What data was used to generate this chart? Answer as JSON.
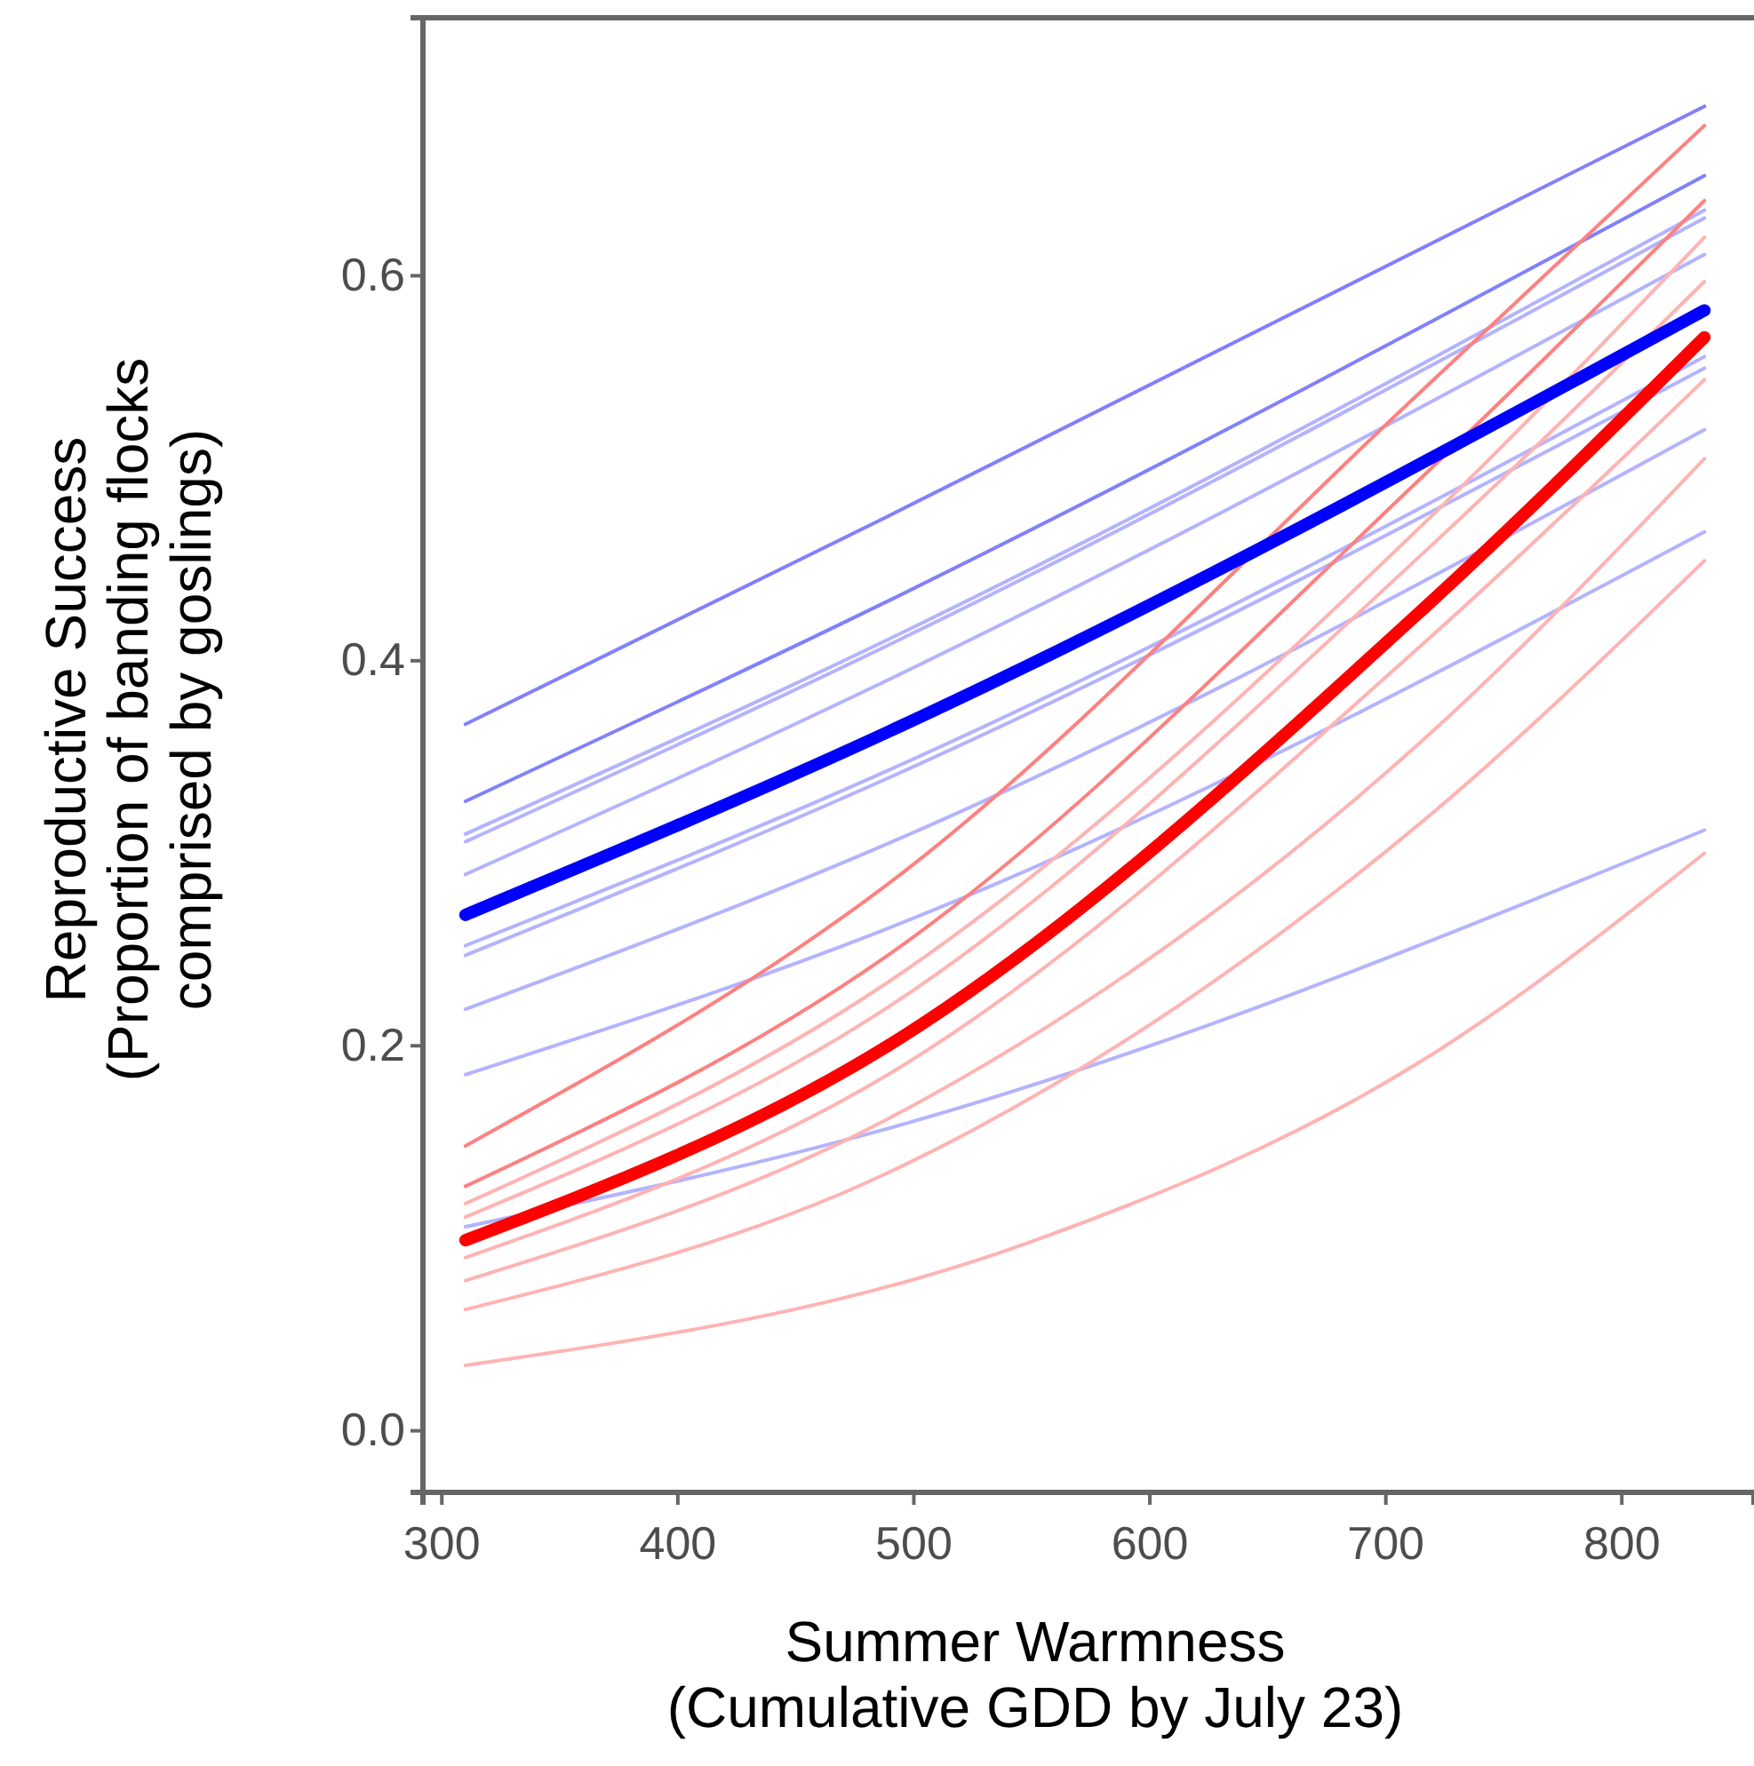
{
  "chart_data": {
    "type": "line",
    "xlabel": "Summer Warmness\n(Cumulative GDD by July 23)",
    "ylabel": "Reproductive Success\n(Proportion of banding flocks\ncomprised by goslings)",
    "xlim": [
      292,
      856
    ],
    "ylim": [
      -0.032,
      0.734
    ],
    "xticks": [
      300,
      400,
      500,
      600,
      700,
      800
    ],
    "yticks": [
      {
        "value": 0,
        "label": "0.0"
      },
      0.2,
      0.4,
      0.6
    ],
    "grid": false,
    "line_style": "solid",
    "marker": "none",
    "series": [
      {
        "color": "#8080ff",
        "x": [
          310,
          489,
          835
        ],
        "values": [
          0.367,
          0.475,
          0.688
        ]
      },
      {
        "color": "#8080ff",
        "x": [
          310,
          489,
          835
        ],
        "values": [
          0.327,
          0.431,
          0.652
        ]
      },
      {
        "color": "#b3b3ff",
        "x": [
          310,
          489,
          835
        ],
        "values": [
          0.31,
          0.411,
          0.634
        ]
      },
      {
        "color": "#b3b3ff",
        "x": [
          310,
          489,
          835
        ],
        "values": [
          0.306,
          0.408,
          0.63
        ]
      },
      {
        "color": "#b3b3ff",
        "x": [
          310,
          489,
          835
        ],
        "values": [
          0.289,
          0.39,
          0.611
        ]
      },
      {
        "color": "#b3b3ff",
        "x": [
          310,
          489,
          835
        ],
        "values": [
          0.252,
          0.343,
          0.558
        ]
      },
      {
        "color": "#b3b3ff",
        "x": [
          310,
          489,
          835
        ],
        "values": [
          0.247,
          0.339,
          0.552
        ]
      },
      {
        "color": "#b3b3ff",
        "x": [
          310,
          489,
          835
        ],
        "values": [
          0.219,
          0.305,
          0.52
        ]
      },
      {
        "color": "#b3b3ff",
        "x": [
          310,
          489,
          835
        ],
        "values": [
          0.185,
          0.261,
          0.467
        ]
      },
      {
        "color": "#b3b3ff",
        "x": [
          310,
          489,
          835
        ],
        "values": [
          0.106,
          0.157,
          0.312
        ]
      },
      {
        "color": "#ff8080",
        "x": [
          310,
          489,
          715,
          835
        ],
        "values": [
          0.148,
          0.284,
          0.54,
          0.678
        ]
      },
      {
        "color": "#ff8080",
        "x": [
          310,
          489,
          715,
          835
        ],
        "values": [
          0.127,
          0.247,
          0.495,
          0.639
        ]
      },
      {
        "color": "#ffb3b3",
        "x": [
          310,
          489,
          715,
          835
        ],
        "values": [
          0.118,
          0.233,
          0.47,
          0.62
        ]
      },
      {
        "color": "#ffb3b3",
        "x": [
          310,
          489,
          715,
          835
        ],
        "values": [
          0.111,
          0.22,
          0.455,
          0.597
        ]
      },
      {
        "color": "#ffb3b3",
        "x": [
          310,
          489,
          715,
          835
        ],
        "values": [
          0.09,
          0.185,
          0.408,
          0.546
        ]
      },
      {
        "color": "#ffb3b3",
        "x": [
          310,
          489,
          715,
          835
        ],
        "values": [
          0.078,
          0.162,
          0.358,
          0.505
        ]
      },
      {
        "color": "#ffb3b3",
        "x": [
          310,
          489,
          715,
          835
        ],
        "values": [
          0.063,
          0.134,
          0.316,
          0.452
        ]
      },
      {
        "color": "#ffb3b3",
        "x": [
          310,
          547,
          715,
          835
        ],
        "values": [
          0.034,
          0.097,
          0.192,
          0.3
        ]
      },
      {
        "color": "#0000ff",
        "x": [
          310,
          489,
          835
        ],
        "values": [
          0.268,
          0.363,
          0.582
        ]
      },
      {
        "color": "#ff0000",
        "x": [
          310,
          489,
          715,
          835
        ],
        "values": [
          0.099,
          0.2,
          0.426,
          0.568
        ]
      }
    ]
  }
}
